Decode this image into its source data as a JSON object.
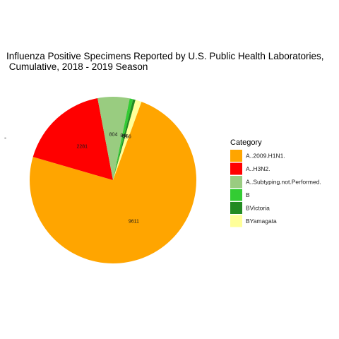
{
  "chart_data": {
    "type": "pie",
    "title": "Influenza Positive Specimens Reported by U.S. Public Health Laboratories,\n Cumulative, 2018 - 2019 Season",
    "ylabel": "-",
    "legend_title": "Category",
    "legend_position": "right",
    "slices": [
      {
        "label": "A..2009.H1N1.",
        "value": 9611,
        "color": "#FFA500",
        "value_label": "9611"
      },
      {
        "label": "A..H3N2.",
        "value": 2281,
        "color": "#FF0000",
        "value_label": "2281"
      },
      {
        "label": "A..Subtyping.not.Performed.",
        "value": 804,
        "color": "#99CC80",
        "value_label": "804"
      },
      {
        "label": "B",
        "value": 84,
        "color": "#33CC33",
        "value_label": "84"
      },
      {
        "label": "BVictoria",
        "value": 64,
        "color": "#228B22",
        "value_label": "64"
      },
      {
        "label": "BYamagata",
        "value": 156,
        "color": "#FFFF99",
        "value_label": "156"
      }
    ]
  }
}
